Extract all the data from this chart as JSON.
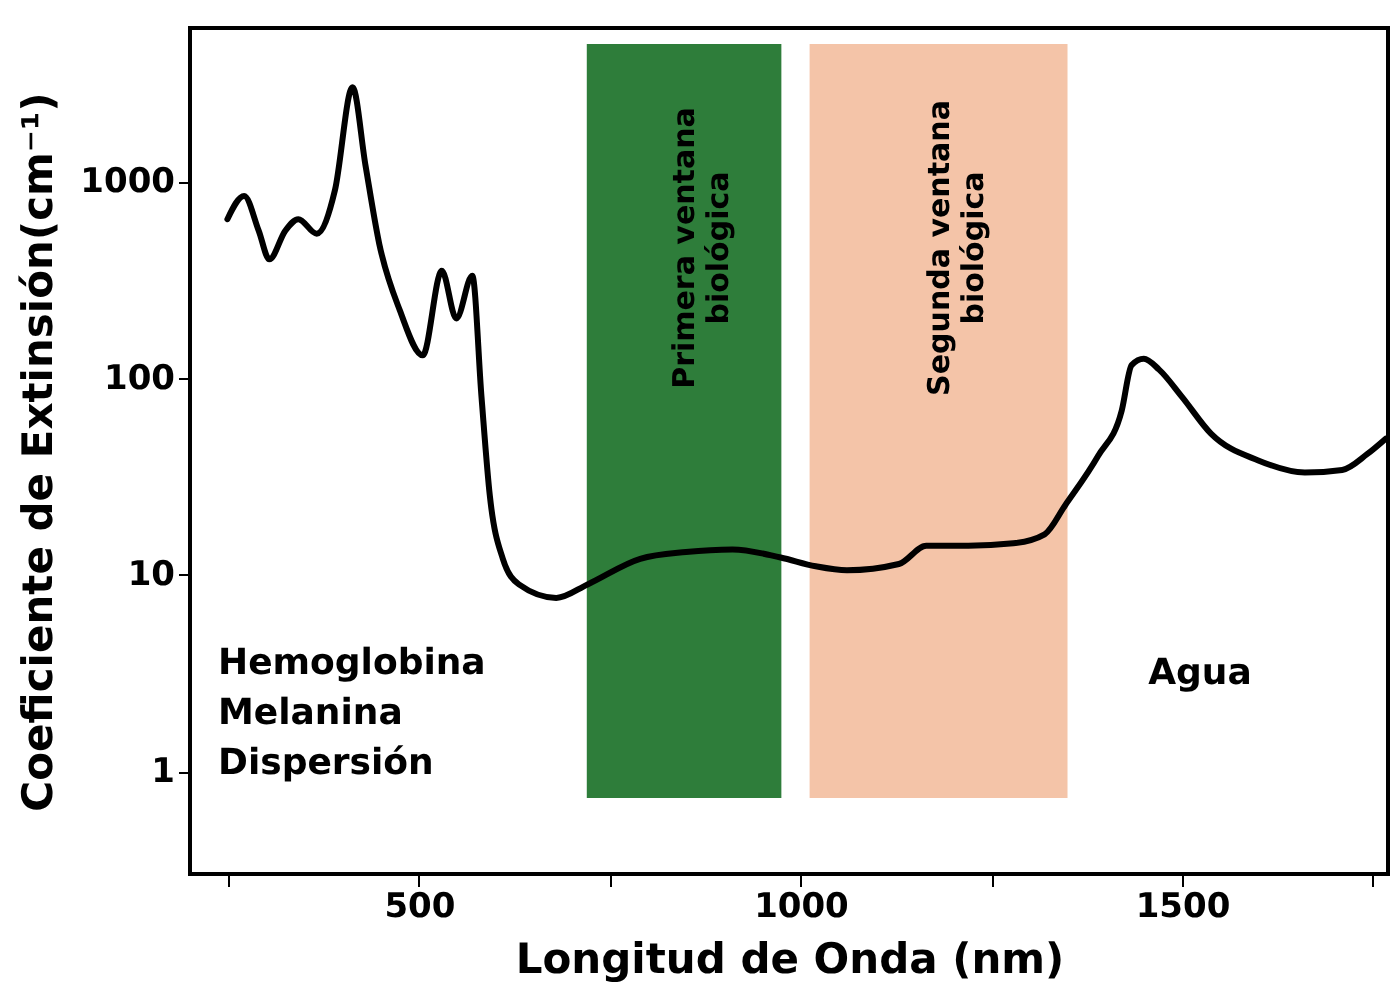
{
  "chart_data": {
    "type": "line",
    "xlabel": "Longitud de Onda (nm)",
    "ylabel": "Coeficiente de Extinsión(cm⁻¹)",
    "log": "y",
    "grid": false,
    "line_style": "solid",
    "marker": "none",
    "xlim": [
      200,
      1770
    ],
    "xticks": [
      {
        "value": 250,
        "label": null
      },
      500,
      {
        "value": 750,
        "label": null
      },
      1000,
      {
        "value": 1250,
        "label": null
      },
      1500,
      {
        "value": 1750,
        "label": null
      }
    ],
    "ylim": [
      0.3,
      6000
    ],
    "yticks": [
      1,
      10,
      100,
      1000
    ],
    "bands": [
      {
        "axis": "x",
        "from": 720,
        "to": 975,
        "label": "Primera ventana\nbiológica",
        "color": "#2e7d3a"
      },
      {
        "axis": "x",
        "from": 1012,
        "to": 1350,
        "label": "Segunda ventana\nbiológica",
        "color": "#f4c4a8"
      }
    ],
    "annotations": [
      "Hemoglobina\nMelanina\nDispersión",
      "Agua"
    ],
    "series": [
      {
        "color": "#000000",
        "x": [
          249,
          271,
          290,
          304,
          325,
          342,
          366,
          390,
          413,
          430,
          448,
          475,
          505,
          530,
          549,
          570,
          582,
          593,
          610,
          631,
          680,
          721,
          790,
          850,
          911,
          974,
          1020,
          1061,
          1129,
          1165,
          1220,
          1279,
          1320,
          1347,
          1390,
          1421,
          1434,
          1450,
          1470,
          1500,
          1538,
          1600,
          1661,
          1710,
          1743,
          1767
        ],
        "values": [
          640,
          840,
          560,
          400,
          560,
          640,
          540,
          900,
          3000,
          1200,
          480,
          220,
          130,
          350,
          200,
          330,
          80,
          25,
          12,
          8.9,
          7.6,
          8.9,
          12,
          13,
          13.4,
          12.2,
          11,
          10.5,
          11.3,
          14,
          14,
          14.4,
          16,
          22.5,
          40,
          68,
          116,
          125,
          110,
          80,
          52,
          38,
          33,
          34,
          41,
          49
        ]
      }
    ]
  }
}
